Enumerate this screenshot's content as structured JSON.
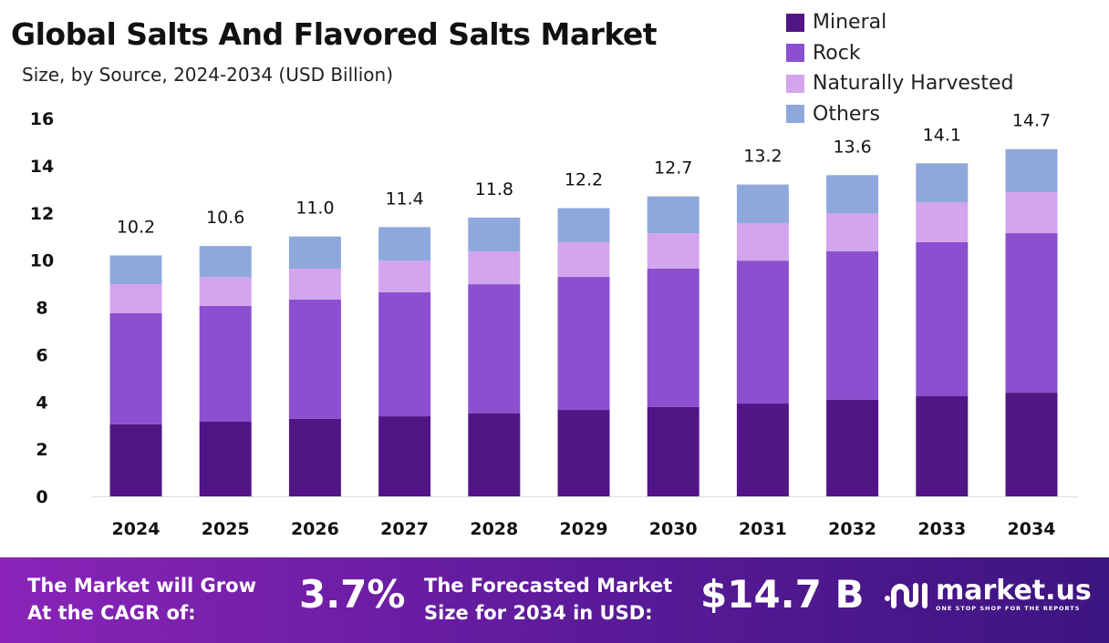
{
  "chart_data": {
    "type": "bar",
    "stacked": true,
    "title": "Global Salts And Flavored Salts Market",
    "subtitle": "Size, by Source, 2024-2034 (USD Billion)",
    "categories": [
      "2024",
      "2025",
      "2026",
      "2027",
      "2028",
      "2029",
      "2030",
      "2031",
      "2032",
      "2033",
      "2034"
    ],
    "series": [
      {
        "name": "Mineral",
        "color": "#521585",
        "values": [
          3.05,
          3.16,
          3.28,
          3.39,
          3.51,
          3.66,
          3.78,
          3.93,
          4.09,
          4.24,
          4.39
        ]
      },
      {
        "name": "Rock",
        "color": "#8b4fcf",
        "values": [
          4.7,
          4.9,
          5.05,
          5.25,
          5.47,
          5.63,
          5.86,
          6.05,
          6.28,
          6.52,
          6.75
        ]
      },
      {
        "name": "Naturally Harvested",
        "color": "#d2a5ec",
        "values": [
          1.23,
          1.23,
          1.31,
          1.34,
          1.39,
          1.47,
          1.5,
          1.59,
          1.62,
          1.69,
          1.74
        ]
      },
      {
        "name": "Others",
        "color": "#8fa8dc",
        "values": [
          1.22,
          1.31,
          1.36,
          1.42,
          1.43,
          1.44,
          1.56,
          1.63,
          1.61,
          1.65,
          1.82
        ]
      }
    ],
    "totals": [
      "10.2",
      "10.6",
      "11.0",
      "11.4",
      "11.8",
      "12.2",
      "12.7",
      "13.2",
      "13.6",
      "14.1",
      "14.7"
    ],
    "yticks": [
      0,
      2,
      4,
      6,
      8,
      10,
      12,
      14,
      16
    ],
    "ylim": [
      0,
      16
    ],
    "grid": false,
    "legend_position": "top-right"
  },
  "footer": {
    "cagr_label_1": "The Market will Grow",
    "cagr_label_2": "At the CAGR of:",
    "cagr_value": "3.7%",
    "forecast_label_1": "The Forecasted Market",
    "forecast_label_2": "Size for 2034 in USD:",
    "forecast_value": "$14.7 B",
    "logo_text": "market.us",
    "logo_tagline": "ONE STOP SHOP FOR THE REPORTS"
  }
}
